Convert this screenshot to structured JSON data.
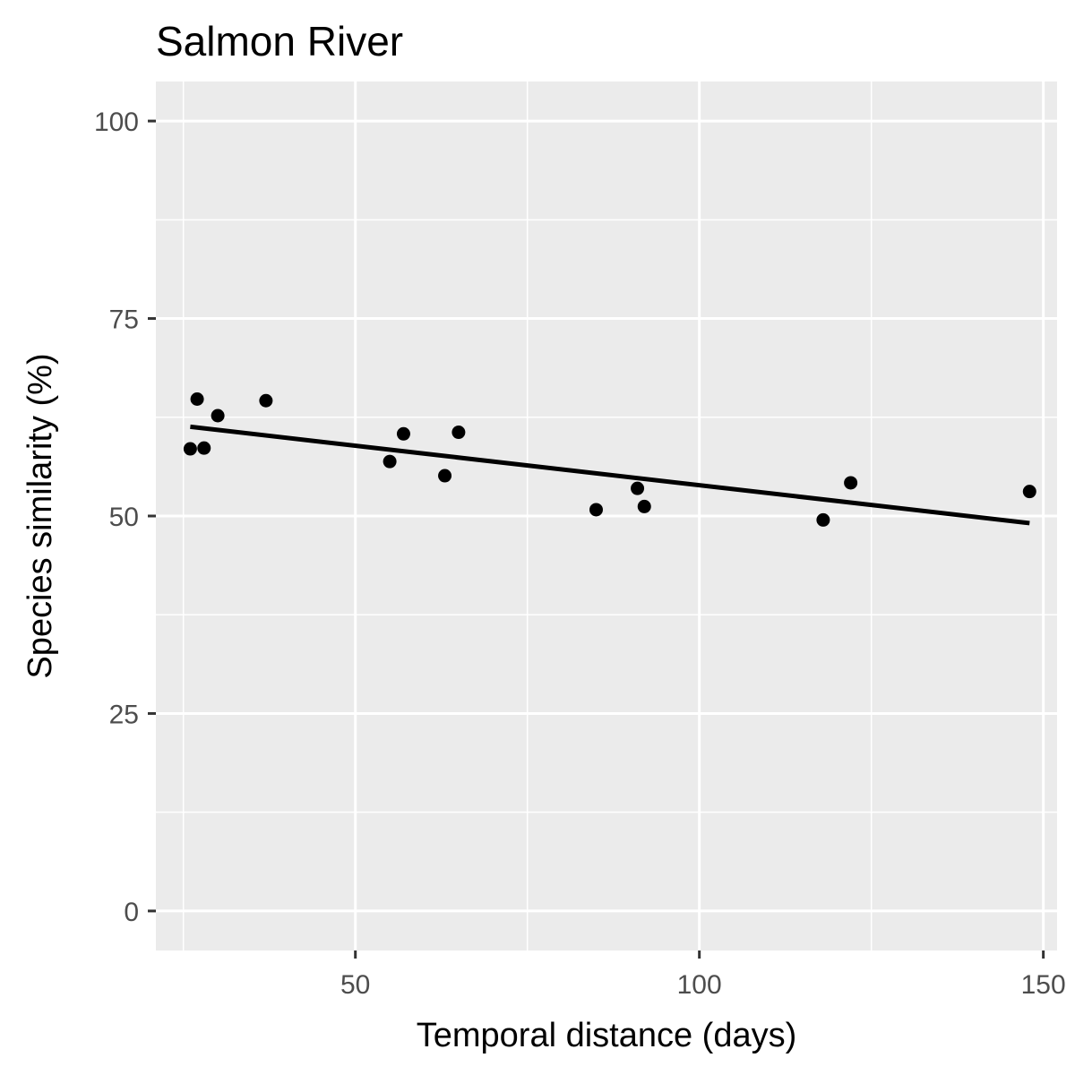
{
  "chart_data": {
    "type": "scatter",
    "title": "Salmon River",
    "xlabel": "Temporal distance (days)",
    "ylabel": "Species similarity (%)",
    "xlim": [
      21,
      152
    ],
    "ylim": [
      -5,
      105
    ],
    "x_ticks": [
      50,
      100,
      150
    ],
    "x_minor_ticks": [
      25,
      75,
      125
    ],
    "y_ticks": [
      0,
      25,
      50,
      75,
      100
    ],
    "y_minor_ticks": [
      12.5,
      37.5,
      62.5,
      87.5
    ],
    "x_tick_labels": [
      "50",
      "100",
      "150"
    ],
    "y_tick_labels": [
      "0",
      "25",
      "50",
      "75",
      "100"
    ],
    "grid": true,
    "background": "#ebebeb",
    "grid_color": "#ffffff",
    "point_color": "#000000",
    "points": [
      {
        "x": 26,
        "y": 58.5
      },
      {
        "x": 27,
        "y": 64.8
      },
      {
        "x": 28,
        "y": 58.6
      },
      {
        "x": 30,
        "y": 62.7
      },
      {
        "x": 37,
        "y": 64.6
      },
      {
        "x": 55,
        "y": 56.9
      },
      {
        "x": 57,
        "y": 60.4
      },
      {
        "x": 63,
        "y": 55.1
      },
      {
        "x": 65,
        "y": 60.6
      },
      {
        "x": 85,
        "y": 50.8
      },
      {
        "x": 91,
        "y": 53.5
      },
      {
        "x": 92,
        "y": 51.2
      },
      {
        "x": 118,
        "y": 49.5
      },
      {
        "x": 122,
        "y": 54.2
      },
      {
        "x": 148,
        "y": 53.1
      }
    ],
    "trend_line": {
      "x": [
        26,
        148
      ],
      "y": [
        61.3,
        49.1
      ]
    }
  }
}
